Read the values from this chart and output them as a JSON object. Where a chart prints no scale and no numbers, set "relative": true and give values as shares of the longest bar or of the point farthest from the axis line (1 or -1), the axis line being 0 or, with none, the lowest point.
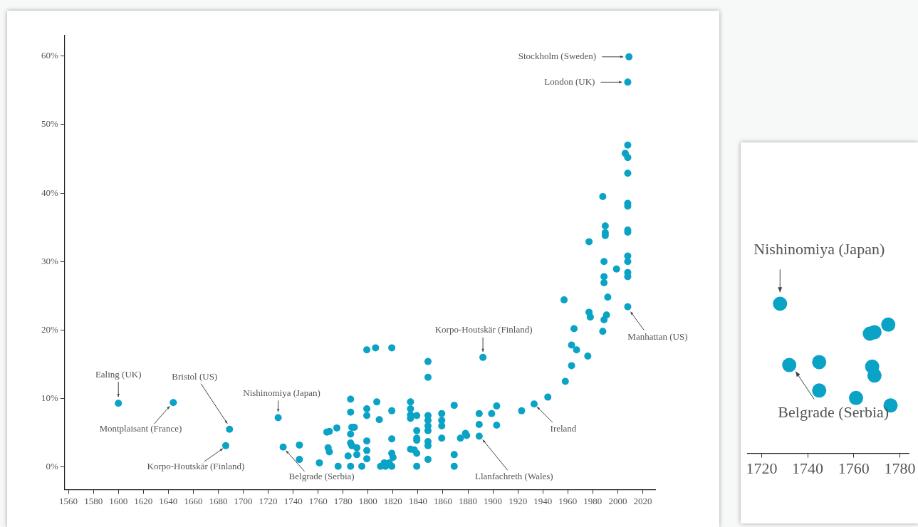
{
  "chart_data": [
    {
      "type": "scatter",
      "series": [
        {
          "color": "#0aa3c6",
          "x": [
            1600,
            1644,
            1689,
            1686,
            1728,
            1732,
            1745,
            1745,
            1761,
            1767,
            1769,
            1775,
            1768,
            1769,
            1776,
            1786,
            1786,
            1787,
            1789,
            1786,
            1786,
            1787,
            1791,
            1791,
            1784,
            1786,
            1795,
            1799,
            1799,
            1799,
            1799,
            1799,
            1799,
            1806,
            1819,
            1807,
            1809,
            1810,
            1813,
            1814,
            1817,
            1819,
            1819,
            1819,
            1819,
            1820,
            1834,
            1834,
            1834,
            1834,
            1839,
            1834,
            1837,
            1839,
            1839,
            1839,
            1839,
            1839,
            1848,
            1848,
            1848,
            1848,
            1848,
            1848,
            1848,
            1848,
            1848,
            1859,
            1859,
            1859,
            1859,
            1869,
            1869,
            1869,
            1874,
            1878,
            1879,
            1892,
            1889,
            1889,
            1889,
            1899,
            1903,
            1903,
            1923,
            1933,
            1944,
            1958,
            1963,
            1967,
            1963,
            1965,
            1976,
            1957,
            1977,
            1978,
            1991,
            1989,
            1988,
            1992,
            1989,
            1989,
            1999,
            1989,
            1977,
            1990,
            1990,
            1990,
            1988,
            2008,
            2006,
            2008,
            2008,
            2008,
            2008,
            2008,
            2008,
            2008,
            2008,
            2008,
            2008,
            2008,
            2009,
            2008
          ],
          "values": [
            9.3,
            9.4,
            5.5,
            3.1,
            7.2,
            2.9,
            3.2,
            1.1,
            0.6,
            5.1,
            5.2,
            5.7,
            2.8,
            2.2,
            0.1,
            9.9,
            8.0,
            5.8,
            5.8,
            4.8,
            3.5,
            3.1,
            2.8,
            1.8,
            1.6,
            0.1,
            0.1,
            8.5,
            7.5,
            3.8,
            2.4,
            1.2,
            17.1,
            17.4,
            17.4,
            9.5,
            6.9,
            0.1,
            0.6,
            0.1,
            0.6,
            0.1,
            2.0,
            4.1,
            8.2,
            1.4,
            9.5,
            8.5,
            7.6,
            7.1,
            7.5,
            2.6,
            2.5,
            5.3,
            4.2,
            3.9,
            2.0,
            0.1,
            15.4,
            13.1,
            7.5,
            6.8,
            6.0,
            5.3,
            3.7,
            3.1,
            1.1,
            7.8,
            6.8,
            6.0,
            4.2,
            9.0,
            1.8,
            0.1,
            4.2,
            4.9,
            4.6,
            16.0,
            7.8,
            6.2,
            4.5,
            7.8,
            8.9,
            6.1,
            8.2,
            9.2,
            10.2,
            12.5,
            14.8,
            17.1,
            17.8,
            20.2,
            16.2,
            24.4,
            22.6,
            21.9,
            22.2,
            21.5,
            19.8,
            24.8,
            27.8,
            26.9,
            28.9,
            30.0,
            32.9,
            35.2,
            34.2,
            33.8,
            39.5,
            47.0,
            45.8,
            45.2,
            42.9,
            38.5,
            38.1,
            34.6,
            34.3,
            30.8,
            30.0,
            28.4,
            27.8,
            23.4,
            59.9,
            56.2
          ]
        }
      ],
      "xlim": [
        1557,
        2030
      ],
      "xticks": [
        1560,
        1580,
        1600,
        1620,
        1640,
        1660,
        1680,
        1700,
        1720,
        1740,
        1760,
        1780,
        1800,
        1820,
        1840,
        1860,
        1880,
        1900,
        1920,
        1940,
        1960,
        1980,
        2000,
        2020
      ],
      "ylim": [
        -3.3,
        63
      ],
      "yticks": [
        {
          "value": 0,
          "label": "0%"
        },
        {
          "value": 10,
          "label": "10%"
        },
        {
          "value": 20,
          "label": "20%"
        },
        {
          "value": 30,
          "label": "30%"
        },
        {
          "value": 40,
          "label": "40%"
        },
        {
          "value": 50,
          "label": "50%"
        },
        {
          "value": 60,
          "label": "60%"
        }
      ],
      "marker": "circle",
      "annotations": [
        {
          "text": "Stockholm (Sweden)",
          "x": 2009,
          "y": 59.9
        },
        {
          "text": "London (UK)",
          "x": 2008,
          "y": 56.2
        },
        {
          "text": "Ealing (UK)",
          "x": 1600,
          "y": 9.3
        },
        {
          "text": "Montplaisant (France)",
          "x": 1644,
          "y": 9.4
        },
        {
          "text": "Bristol (US)",
          "x": 1689,
          "y": 5.5
        },
        {
          "text": "Korpo-Houtskär (Finland)",
          "x": 1686,
          "y": 3.1
        },
        {
          "text": "Nishinomiya (Japan)",
          "x": 1728,
          "y": 7.2
        },
        {
          "text": "Belgrade (Serbia)",
          "x": 1732,
          "y": 2.9
        },
        {
          "text": "Korpo-Houtskär (Finland)",
          "x": 1892,
          "y": 16.0
        },
        {
          "text": "Llanfachreth (Wales)",
          "x": 1889,
          "y": 4.5
        },
        {
          "text": "Ireland",
          "x": 1933,
          "y": 9.2
        },
        {
          "text": "Manhattan (US)",
          "x": 2008,
          "y": 23.4
        }
      ]
    },
    {
      "type": "scatter",
      "series": [
        {
          "color": "#0aa3c6",
          "x": [
            1728,
            1732,
            1745,
            1745,
            1761,
            1767,
            1769,
            1775,
            1768,
            1769,
            1776
          ],
          "values": [
            1.0,
            0.59,
            0.61,
            0.42,
            0.37,
            0.8,
            0.81,
            0.86,
            0.58,
            0.52,
            0.32
          ]
        }
      ],
      "xlim": [
        1714,
        1784
      ],
      "xticks": [
        1720,
        1740,
        1760,
        1780
      ],
      "relative": true,
      "tick_labels": "x",
      "marker": "circle",
      "annotations": [
        {
          "text": "Nishinomiya (Japan)",
          "x": 1728,
          "y": 1.0
        },
        {
          "text": "Belgrade (Serbia)",
          "x": 1732,
          "y": 0.59
        }
      ]
    }
  ]
}
